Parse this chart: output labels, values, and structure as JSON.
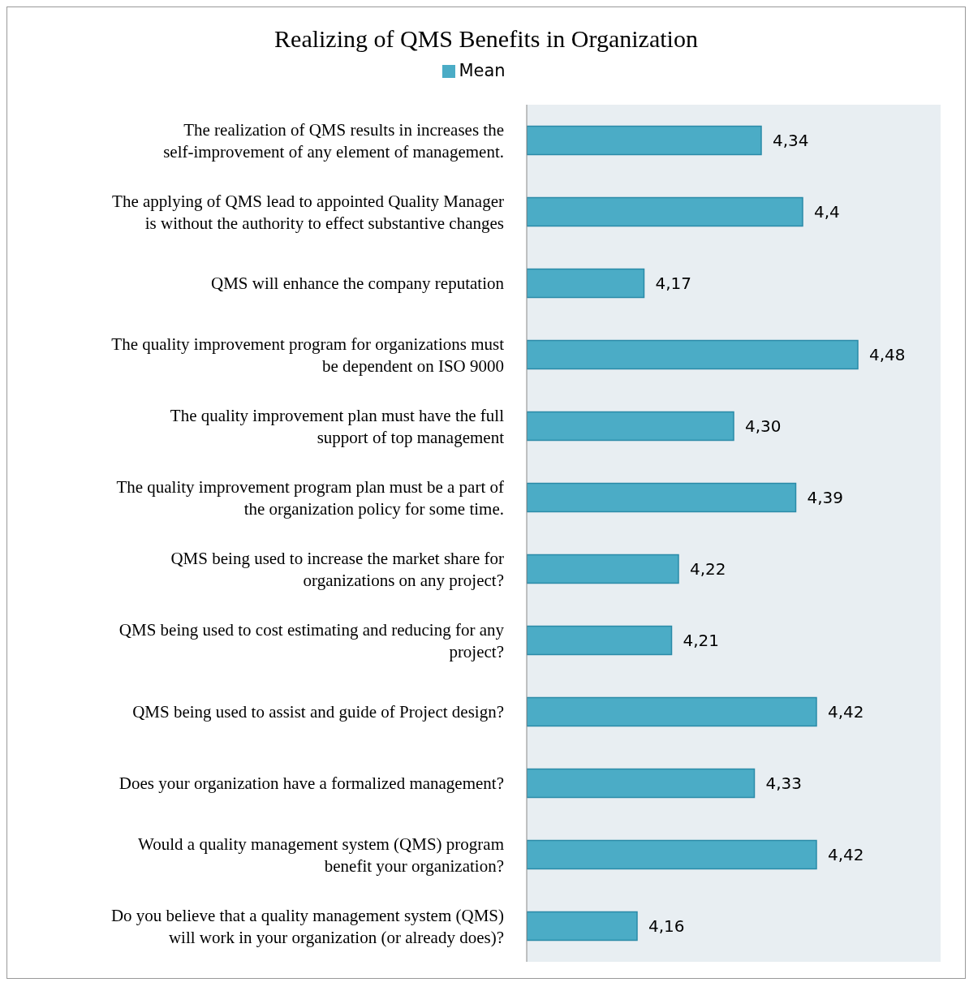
{
  "chart_data": {
    "type": "bar",
    "orientation": "horizontal",
    "title": "Realizing of QMS Benefits in Organization",
    "categories": [
      "The realization of QMS results in increases the self-improvement of any element of management.",
      "The applying of QMS lead to appointed Quality Manager is without the authority to effect substantive changes",
      "QMS will enhance the company reputation",
      "The quality improvement program for organizations must be dependent on ISO 9000",
      "The quality improvement plan must have the full support of top management",
      "The quality improvement program plan must be a part of the organization policy for some time.",
      "QMS being used to increase the market share for organizations on any project?",
      "QMS being used to cost estimating and reducing for any project?",
      "QMS being used to assist and guide of Project design?",
      "Does your organization have a formalized management?",
      "Would a quality management system (QMS) program benefit your organization?",
      "Do you believe that a quality management system (QMS) will work in your organization (or already does)?"
    ],
    "series": [
      {
        "name": "Mean",
        "color": "#4bacc6",
        "values": [
          4.34,
          4.4,
          4.17,
          4.48,
          4.3,
          4.39,
          4.22,
          4.21,
          4.42,
          4.33,
          4.42,
          4.16
        ],
        "value_labels": [
          "4,34",
          "4,4",
          "4,17",
          "4,48",
          "4,30",
          "4,39",
          "4,22",
          "4,21",
          "4,42",
          "4,33",
          "4,42",
          "4,16"
        ]
      }
    ],
    "xlim": [
      4,
      4.6
    ],
    "tick_labels": "y",
    "legend": "top"
  }
}
